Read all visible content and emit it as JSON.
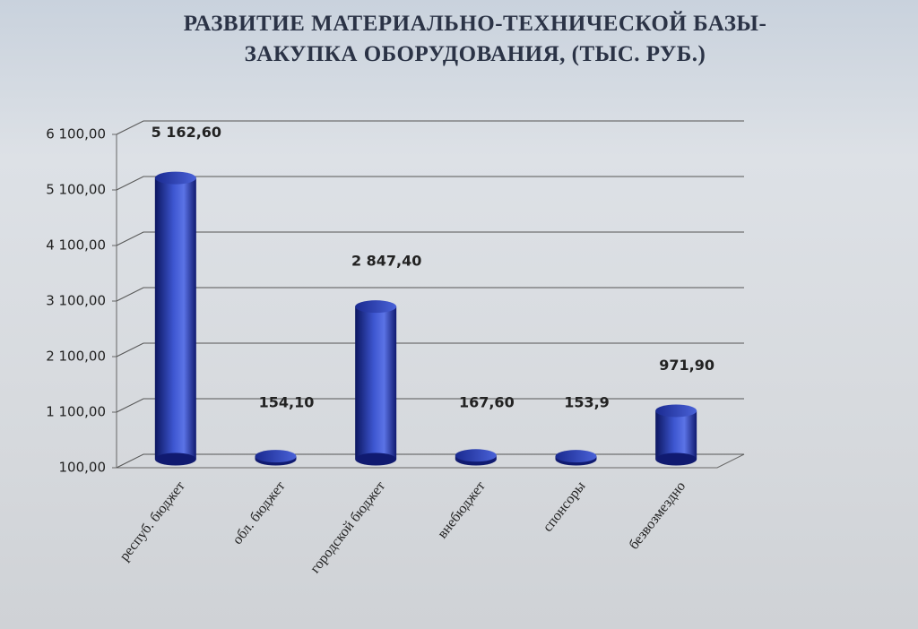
{
  "chart_data": {
    "type": "bar3d",
    "title": "РАЗВИТИЕ  МАТЕРИАЛЬНО-ТЕХНИЧЕСКОЙ БАЗЫ- ЗАКУПКА ОБОРУДОВАНИЯ, (ТЫС. РУБ.)",
    "categories": [
      "респуб. бюджет",
      "обл. бюджет",
      "городской бюджет",
      "внебюджет",
      "спонсоры",
      "безвозмездно"
    ],
    "values": [
      5162.6,
      154.1,
      2847.4,
      167.6,
      153.9,
      971.9
    ],
    "value_labels": [
      "5 162,60",
      "154,10",
      "2 847,40",
      "167,60",
      "153,9",
      "971,90"
    ],
    "color": "#2a3fa8",
    "ylim": [
      100,
      6100
    ],
    "yticks": [
      {
        "value": 100,
        "label": "100,00"
      },
      {
        "value": 1100,
        "label": "1 100,00"
      },
      {
        "value": 2100,
        "label": "2 100,00"
      },
      {
        "value": 3100,
        "label": "3 100,00"
      },
      {
        "value": 4100,
        "label": "4 100,00"
      },
      {
        "value": 5100,
        "label": "5 100,00"
      },
      {
        "value": 6100,
        "label": "6 100,00"
      }
    ],
    "grid": true
  }
}
